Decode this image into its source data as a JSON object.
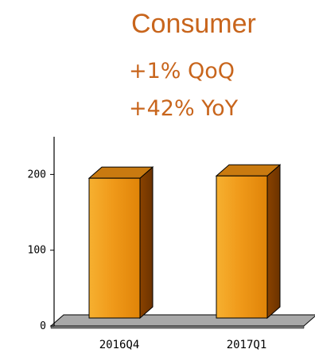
{
  "header": {
    "title": "Consumer",
    "qoq": "+1%  QoQ",
    "yoy": "+42%  YoY"
  },
  "colors": {
    "accent": "#c8651c",
    "bar_front": "#f09a1a",
    "bar_side": "#6b3200",
    "bar_top": "#c97a10",
    "floor": "#a8a8a8"
  },
  "chart_data": {
    "type": "bar",
    "categories": [
      "2016Q4",
      "2017Q1"
    ],
    "values": [
      195,
      198
    ],
    "title": "",
    "xlabel": "",
    "ylabel": "",
    "ylim": [
      0,
      250
    ],
    "yticks": [
      0,
      100,
      200
    ],
    "grid": false,
    "style": "3d"
  }
}
